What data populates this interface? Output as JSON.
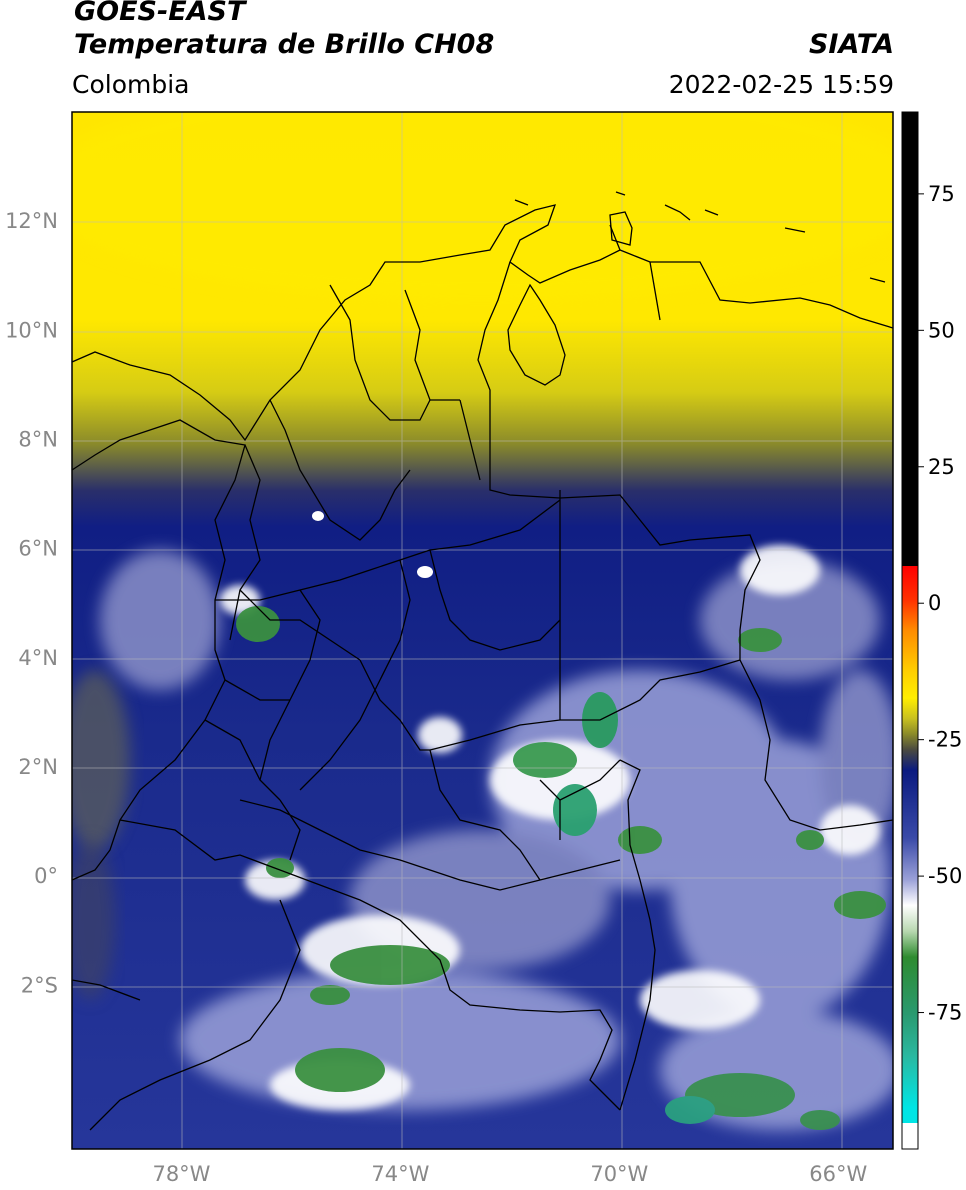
{
  "header": {
    "satellite": "GOES-EAST",
    "product": "Temperatura de Brillo CH08",
    "region": "Colombia",
    "organization": "SIATA",
    "timestamp": "2022-02-25 15:59"
  },
  "map": {
    "lon_range": [
      -80.0,
      -65.0
    ],
    "lat_range": [
      -5.0,
      14.0
    ],
    "lat_ticks": [
      {
        "value": 12,
        "label": "12°N"
      },
      {
        "value": 10,
        "label": "10°N"
      },
      {
        "value": 8,
        "label": "8°N"
      },
      {
        "value": 6,
        "label": "6°N"
      },
      {
        "value": 4,
        "label": "4°N"
      },
      {
        "value": 2,
        "label": "2°N"
      },
      {
        "value": 0,
        "label": "0°"
      },
      {
        "value": -2,
        "label": "2°S"
      }
    ],
    "lon_ticks": [
      {
        "value": -78,
        "label": "78°W"
      },
      {
        "value": -74,
        "label": "74°W"
      },
      {
        "value": -70,
        "label": "70°W"
      },
      {
        "value": -66,
        "label": "66°W"
      }
    ],
    "gridlines": true
  },
  "colorbar": {
    "range": [
      -100,
      90
    ],
    "ticks": [
      {
        "value": 75,
        "label": "75"
      },
      {
        "value": 50,
        "label": "50"
      },
      {
        "value": 25,
        "label": "25"
      },
      {
        "value": 0,
        "label": "0"
      },
      {
        "value": -25,
        "label": "-25"
      },
      {
        "value": -50,
        "label": "-50"
      },
      {
        "value": -75,
        "label": "-75"
      }
    ],
    "colors": {
      "warm_black": "#000000",
      "red": "#ff0000",
      "orange": "#ff8c00",
      "yellow": "#ffee00",
      "olive": "#8a8a2a",
      "navy": "#0a1a80",
      "lavender": "#9aa0d8",
      "white": "#ffffff",
      "green": "#2e8b30",
      "teal": "#2ab8a0",
      "cyan": "#00e5e5"
    }
  }
}
